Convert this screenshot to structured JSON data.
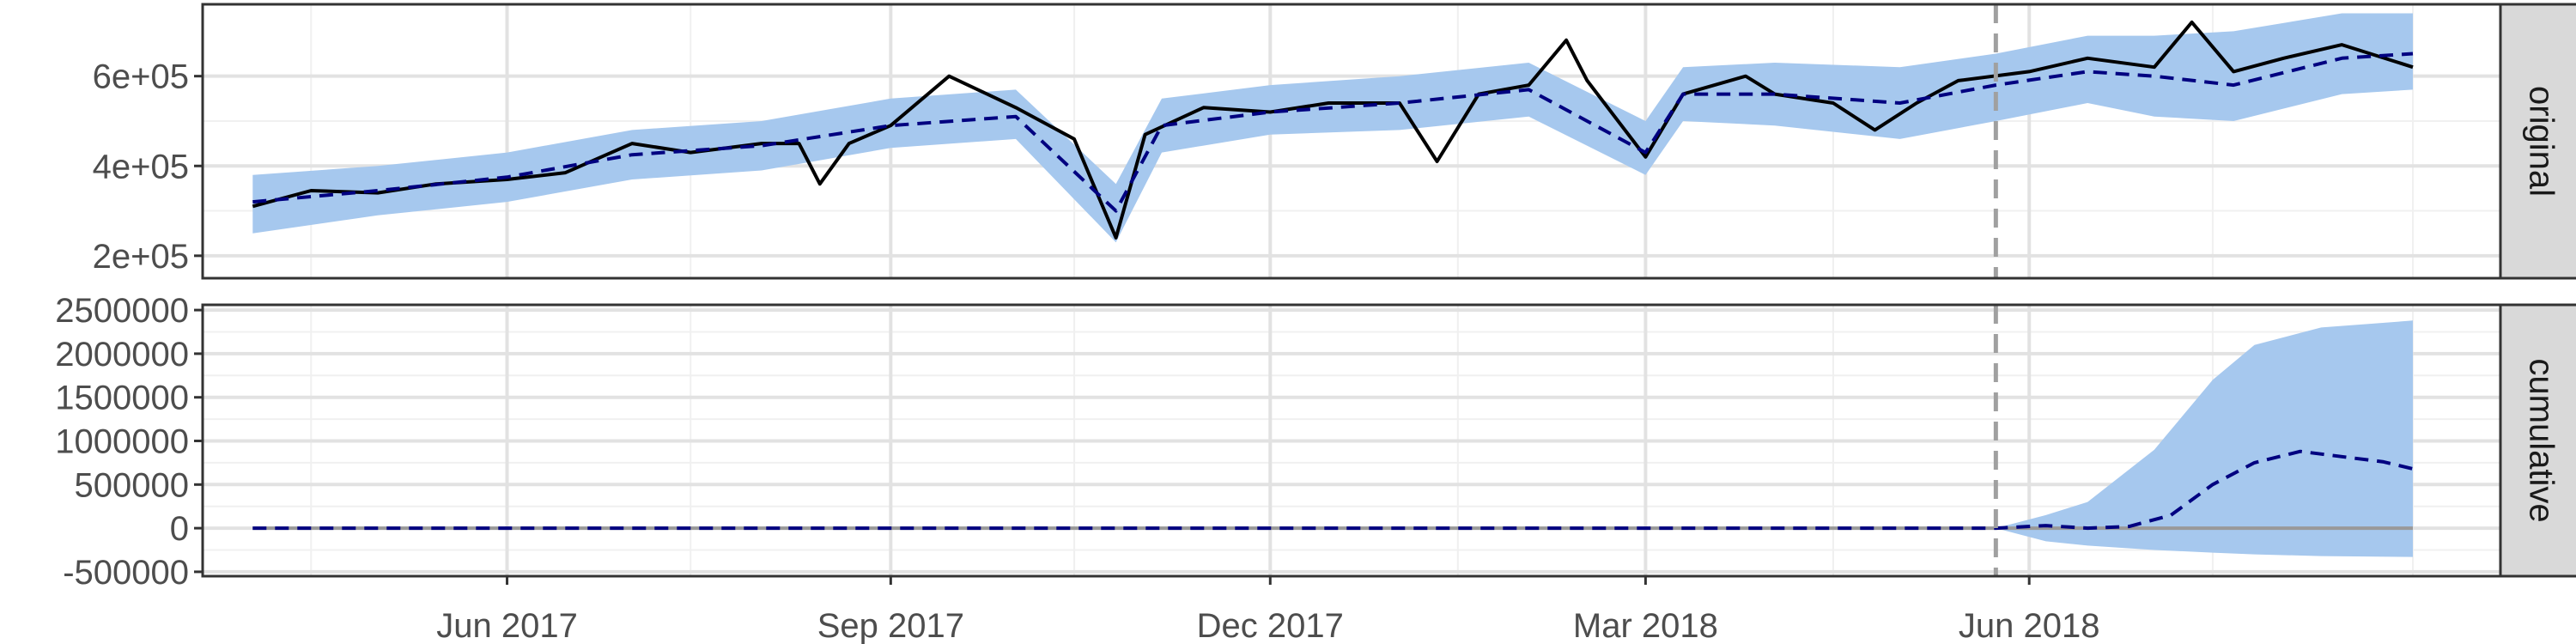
{
  "chart_data": {
    "type": "line",
    "x_axis": {
      "kind": "date",
      "range": [
        "2017-03-20",
        "2018-09-22"
      ],
      "major_ticks": [
        {
          "date": "2017-06-01",
          "label": "Jun 2017"
        },
        {
          "date": "2017-09-01",
          "label": "Sep 2017"
        },
        {
          "date": "2017-12-01",
          "label": "Dec 2017"
        },
        {
          "date": "2018-03-01",
          "label": "Mar 2018"
        },
        {
          "date": "2018-06-01",
          "label": "Jun 2018"
        }
      ],
      "minor_ticks": [
        "2017-04-15",
        "2017-07-15",
        "2017-10-15",
        "2018-01-15",
        "2018-04-15",
        "2018-07-15",
        "2018-09-01"
      ]
    },
    "intervention_date": "2018-05-24",
    "grid": true,
    "panels": [
      {
        "name": "original",
        "strip_label": "original",
        "ylim": [
          150000,
          760000
        ],
        "yticks": [
          {
            "value": 200000,
            "label": "2e+05"
          },
          {
            "value": 400000,
            "label": "4e+05"
          },
          {
            "value": 600000,
            "label": "6e+05"
          }
        ],
        "series": [
          {
            "role": "observed",
            "style": "solid",
            "color": "#000000",
            "points": [
              [
                "2017-04-01",
                310000
              ],
              [
                "2017-04-15",
                345000
              ],
              [
                "2017-05-01",
                340000
              ],
              [
                "2017-05-15",
                360000
              ],
              [
                "2017-06-01",
                370000
              ],
              [
                "2017-06-15",
                385000
              ],
              [
                "2017-07-01",
                450000
              ],
              [
                "2017-07-15",
                430000
              ],
              [
                "2017-08-01",
                450000
              ],
              [
                "2017-08-10",
                450000
              ],
              [
                "2017-08-15",
                360000
              ],
              [
                "2017-08-22",
                450000
              ],
              [
                "2017-09-01",
                490000
              ],
              [
                "2017-09-15",
                600000
              ],
              [
                "2017-10-01",
                530000
              ],
              [
                "2017-10-15",
                460000
              ],
              [
                "2017-10-25",
                240000
              ],
              [
                "2017-11-01",
                470000
              ],
              [
                "2017-11-15",
                530000
              ],
              [
                "2017-12-01",
                520000
              ],
              [
                "2017-12-15",
                540000
              ],
              [
                "2018-01-01",
                540000
              ],
              [
                "2018-01-10",
                410000
              ],
              [
                "2018-01-20",
                560000
              ],
              [
                "2018-02-01",
                580000
              ],
              [
                "2018-02-10",
                680000
              ],
              [
                "2018-02-15",
                590000
              ],
              [
                "2018-03-01",
                420000
              ],
              [
                "2018-03-10",
                560000
              ],
              [
                "2018-03-25",
                600000
              ],
              [
                "2018-04-01",
                560000
              ],
              [
                "2018-04-15",
                540000
              ],
              [
                "2018-04-25",
                480000
              ],
              [
                "2018-05-05",
                540000
              ],
              [
                "2018-05-15",
                590000
              ],
              [
                "2018-06-01",
                610000
              ],
              [
                "2018-06-15",
                640000
              ],
              [
                "2018-07-01",
                620000
              ],
              [
                "2018-07-10",
                720000
              ],
              [
                "2018-07-20",
                610000
              ],
              [
                "2018-08-01",
                640000
              ],
              [
                "2018-08-15",
                670000
              ],
              [
                "2018-09-01",
                620000
              ]
            ]
          },
          {
            "role": "predicted",
            "style": "dashed",
            "color": "#000080",
            "points": [
              [
                "2017-04-01",
                320000
              ],
              [
                "2017-05-01",
                345000
              ],
              [
                "2017-06-01",
                375000
              ],
              [
                "2017-07-01",
                425000
              ],
              [
                "2017-08-01",
                445000
              ],
              [
                "2017-09-01",
                490000
              ],
              [
                "2017-10-01",
                510000
              ],
              [
                "2017-10-25",
                300000
              ],
              [
                "2017-11-05",
                490000
              ],
              [
                "2017-12-01",
                520000
              ],
              [
                "2018-01-01",
                540000
              ],
              [
                "2018-02-01",
                570000
              ],
              [
                "2018-03-01",
                430000
              ],
              [
                "2018-03-10",
                560000
              ],
              [
                "2018-04-01",
                560000
              ],
              [
                "2018-05-01",
                540000
              ],
              [
                "2018-05-24",
                580000
              ],
              [
                "2018-06-15",
                610000
              ],
              [
                "2018-07-01",
                600000
              ],
              [
                "2018-07-20",
                580000
              ],
              [
                "2018-08-15",
                640000
              ],
              [
                "2018-09-01",
                650000
              ]
            ]
          }
        ],
        "interval": {
          "color": "#a6c8ee",
          "points": [
            [
              "2017-04-01",
              250000,
              380000
            ],
            [
              "2017-05-01",
              290000,
              400000
            ],
            [
              "2017-06-01",
              320000,
              430000
            ],
            [
              "2017-07-01",
              370000,
              480000
            ],
            [
              "2017-08-01",
              390000,
              500000
            ],
            [
              "2017-09-01",
              440000,
              550000
            ],
            [
              "2017-10-01",
              460000,
              570000
            ],
            [
              "2017-10-25",
              230000,
              360000
            ],
            [
              "2017-11-05",
              430000,
              550000
            ],
            [
              "2017-12-01",
              470000,
              580000
            ],
            [
              "2018-01-01",
              480000,
              600000
            ],
            [
              "2018-02-01",
              510000,
              630000
            ],
            [
              "2018-03-01",
              380000,
              500000
            ],
            [
              "2018-03-10",
              500000,
              620000
            ],
            [
              "2018-04-01",
              490000,
              630000
            ],
            [
              "2018-05-01",
              460000,
              620000
            ],
            [
              "2018-05-24",
              500000,
              650000
            ],
            [
              "2018-06-15",
              540000,
              690000
            ],
            [
              "2018-07-01",
              510000,
              690000
            ],
            [
              "2018-07-20",
              500000,
              700000
            ],
            [
              "2018-08-15",
              560000,
              740000
            ],
            [
              "2018-09-01",
              570000,
              740000
            ]
          ]
        }
      },
      {
        "name": "cumulative",
        "strip_label": "cumulative",
        "ylim": [
          -550000,
          2560000
        ],
        "yticks": [
          {
            "value": 2500000,
            "label": "2500000"
          },
          {
            "value": 2000000,
            "label": "2000000"
          },
          {
            "value": 1500000,
            "label": "1500000"
          },
          {
            "value": 1000000,
            "label": "1000000"
          },
          {
            "value": 500000,
            "label": "500000"
          },
          {
            "value": 0,
            "label": "0"
          },
          {
            "value": -500000,
            "label": "-500000"
          }
        ],
        "series": [
          {
            "role": "observed",
            "style": "solid",
            "color": "#999999",
            "points": [
              [
                "2017-04-01",
                0
              ],
              [
                "2018-09-01",
                0
              ]
            ]
          },
          {
            "role": "predicted",
            "style": "dashed",
            "color": "#000080",
            "points": [
              [
                "2017-04-01",
                0
              ],
              [
                "2018-05-24",
                0
              ],
              [
                "2018-06-05",
                30000
              ],
              [
                "2018-06-15",
                0
              ],
              [
                "2018-06-25",
                20000
              ],
              [
                "2018-07-05",
                150000
              ],
              [
                "2018-07-15",
                500000
              ],
              [
                "2018-07-25",
                750000
              ],
              [
                "2018-08-05",
                880000
              ],
              [
                "2018-08-15",
                820000
              ],
              [
                "2018-08-25",
                760000
              ],
              [
                "2018-09-01",
                680000
              ]
            ]
          }
        ],
        "interval": {
          "color": "#a6c8ee",
          "points": [
            [
              "2017-04-01",
              0,
              0
            ],
            [
              "2018-05-24",
              0,
              0
            ],
            [
              "2018-06-05",
              -150000,
              150000
            ],
            [
              "2018-06-15",
              -200000,
              300000
            ],
            [
              "2018-07-01",
              -250000,
              900000
            ],
            [
              "2018-07-15",
              -280000,
              1700000
            ],
            [
              "2018-07-25",
              -300000,
              2100000
            ],
            [
              "2018-08-10",
              -320000,
              2300000
            ],
            [
              "2018-09-01",
              -330000,
              2380000
            ]
          ]
        }
      }
    ]
  }
}
